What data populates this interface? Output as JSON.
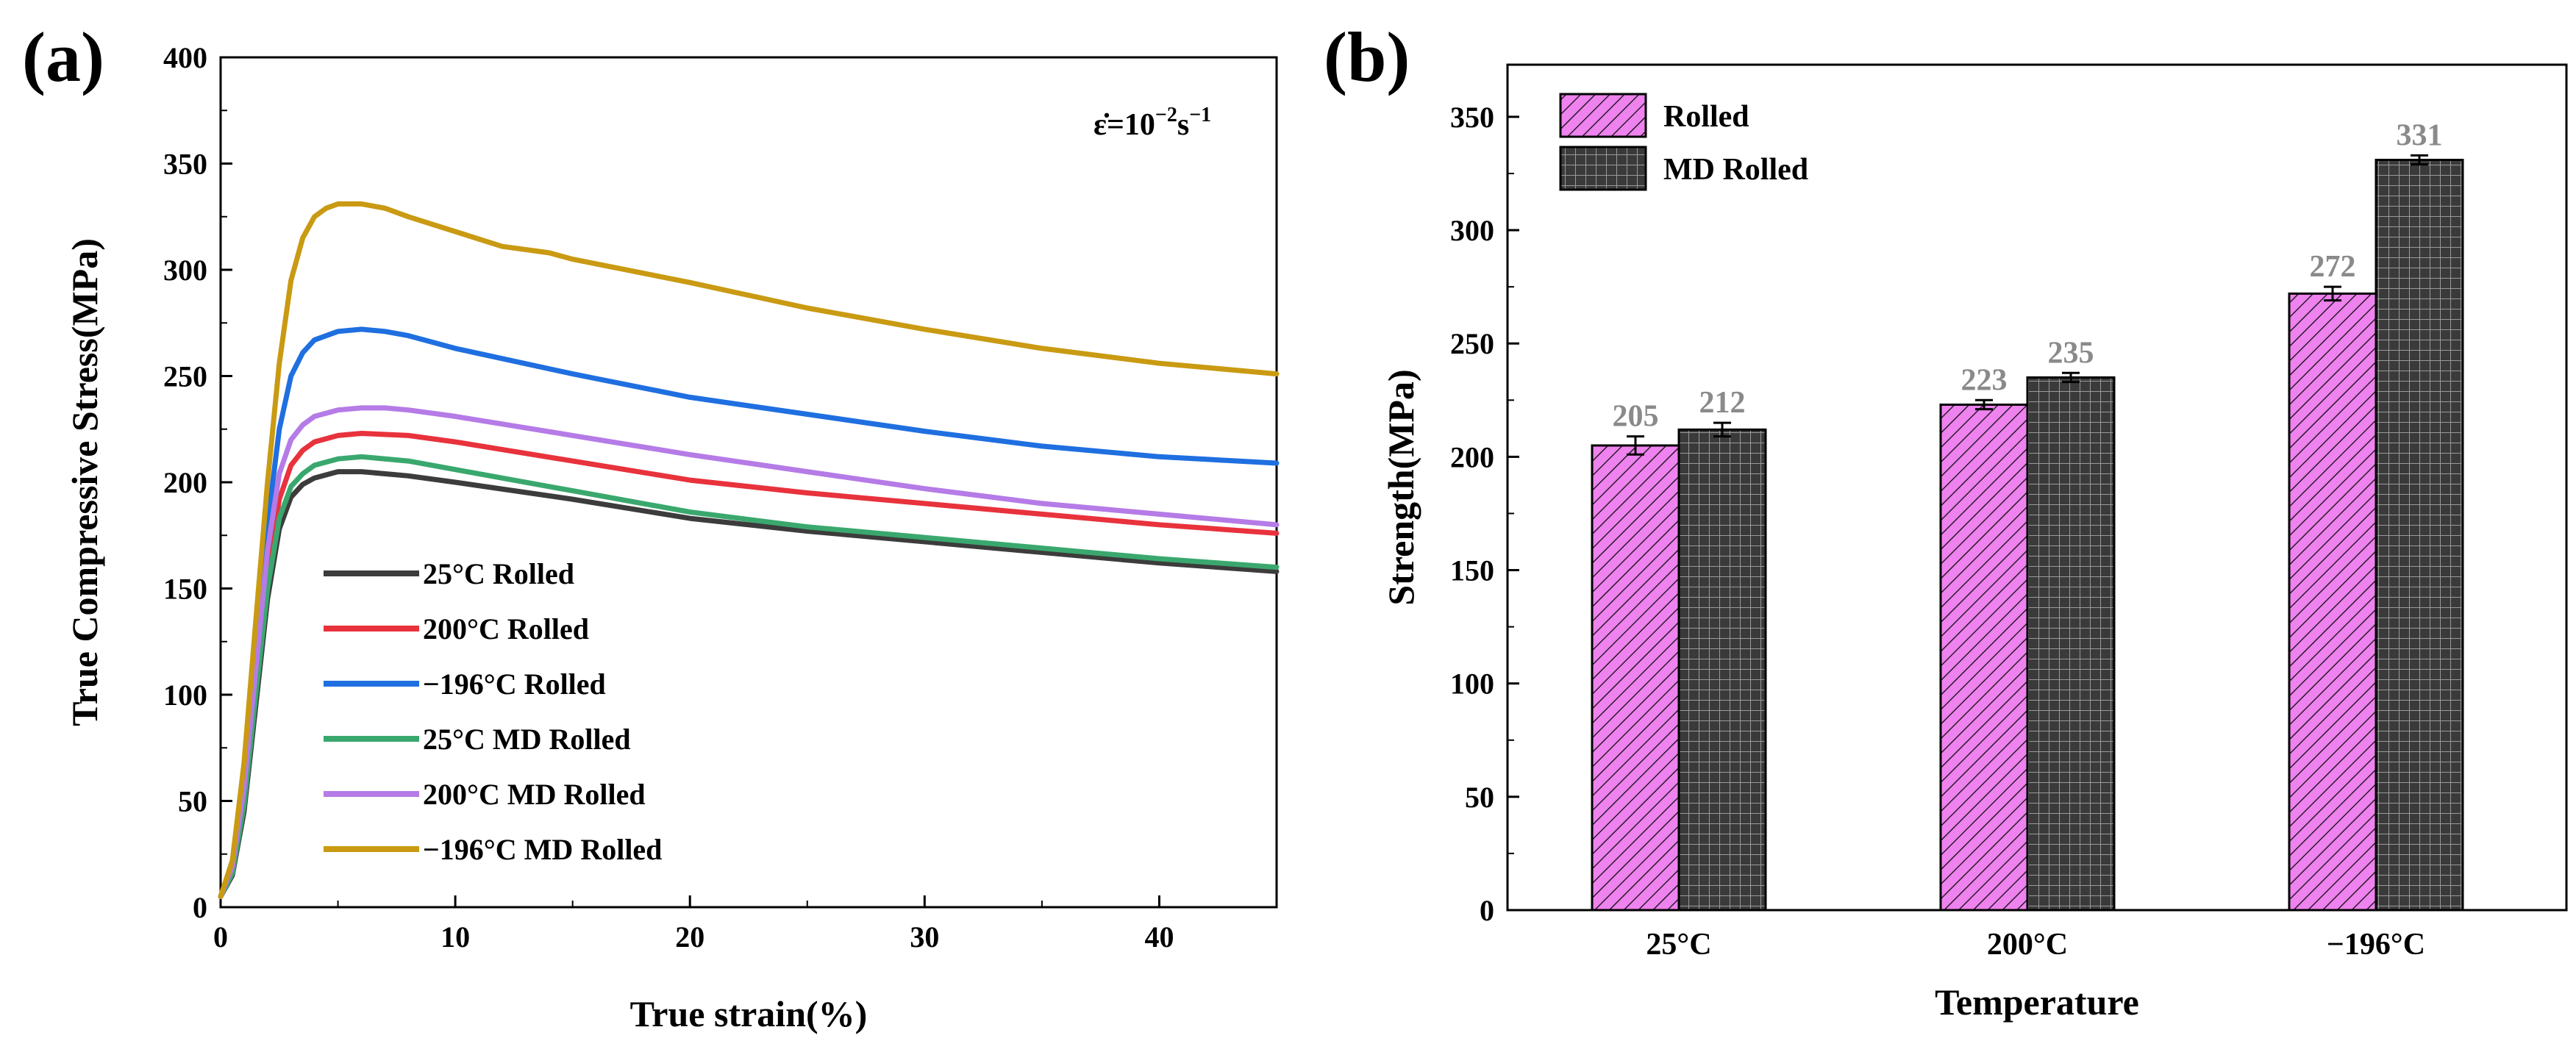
{
  "chart_data": [
    {
      "panel_label": "(a)",
      "type": "line",
      "xlabel": "True strain(%)",
      "ylabel": "True Compressive Stress(MPa)",
      "xlim": [
        0,
        45
      ],
      "ylim": [
        0,
        400
      ],
      "xticks": [
        0,
        10,
        20,
        30,
        40
      ],
      "yticks": [
        0,
        50,
        100,
        150,
        200,
        250,
        300,
        350,
        400
      ],
      "annotation": {
        "base": "ε̇=10",
        "exp1": "−2",
        "unit": "s",
        "exp2": "−1"
      },
      "legend_position": "bottom-left",
      "series": [
        {
          "name": "25°C Rolled",
          "color": "#3c3c3c",
          "x": [
            0,
            0.5,
            1,
            1.5,
            2,
            2.5,
            3,
            3.5,
            4,
            5,
            6,
            8,
            10,
            15,
            20,
            25,
            30,
            35,
            40,
            45
          ],
          "y": [
            5,
            15,
            45,
            95,
            145,
            178,
            193,
            199,
            202,
            205,
            205,
            203,
            200,
            192,
            183,
            177,
            172,
            167,
            162,
            158
          ]
        },
        {
          "name": "200°C Rolled",
          "color": "#e8323c",
          "x": [
            0,
            0.5,
            1,
            1.5,
            2,
            2.5,
            3,
            3.5,
            4,
            5,
            6,
            8,
            10,
            15,
            20,
            25,
            30,
            35,
            40,
            45
          ],
          "y": [
            5,
            18,
            52,
            105,
            158,
            192,
            208,
            215,
            219,
            222,
            223,
            222,
            219,
            210,
            201,
            195,
            190,
            185,
            180,
            176
          ]
        },
        {
          "name": "−196°C Rolled",
          "color": "#1f6fe0",
          "x": [
            0,
            0.5,
            1,
            1.5,
            2,
            2.5,
            3,
            3.5,
            4,
            5,
            6,
            7,
            8,
            10,
            15,
            20,
            25,
            30,
            35,
            40,
            45
          ],
          "y": [
            5,
            20,
            60,
            120,
            180,
            225,
            250,
            261,
            267,
            271,
            272,
            271,
            269,
            263,
            251,
            240,
            232,
            224,
            217,
            212,
            209
          ]
        },
        {
          "name": "25°C MD Rolled",
          "color": "#3aa86e",
          "x": [
            0,
            0.5,
            1,
            1.5,
            2,
            2.5,
            3,
            3.5,
            4,
            5,
            6,
            8,
            10,
            15,
            20,
            25,
            30,
            35,
            40,
            45
          ],
          "y": [
            5,
            16,
            48,
            100,
            150,
            183,
            198,
            204,
            208,
            211,
            212,
            210,
            206,
            196,
            186,
            179,
            174,
            169,
            164,
            160
          ]
        },
        {
          "name": "200°C MD Rolled",
          "color": "#b57be6",
          "x": [
            0,
            0.5,
            1,
            1.5,
            2,
            2.5,
            3,
            3.5,
            4,
            5,
            6,
            7,
            8,
            10,
            15,
            20,
            25,
            30,
            35,
            40,
            45
          ],
          "y": [
            5,
            19,
            56,
            112,
            168,
            204,
            220,
            227,
            231,
            234,
            235,
            235,
            234,
            231,
            222,
            213,
            205,
            197,
            190,
            185,
            180
          ]
        },
        {
          "name": "−196°C MD Rolled",
          "color": "#c99a12",
          "x": [
            0,
            0.5,
            1,
            1.5,
            2,
            2.5,
            3,
            3.5,
            4,
            4.5,
            5,
            5.5,
            6,
            7,
            8,
            10,
            12,
            14,
            15,
            20,
            25,
            30,
            35,
            40,
            45
          ],
          "y": [
            5,
            22,
            68,
            135,
            200,
            256,
            295,
            315,
            325,
            329,
            331,
            331,
            331,
            329,
            325,
            318,
            311,
            308,
            305,
            294,
            282,
            272,
            263,
            256,
            251
          ]
        }
      ]
    },
    {
      "panel_label": "(b)",
      "type": "bar",
      "xlabel": "Temperature",
      "ylabel": "Strength(MPa)",
      "ylim": [
        0,
        373
      ],
      "yticks": [
        0,
        50,
        100,
        150,
        200,
        250,
        300,
        350
      ],
      "categories": [
        "25°C",
        "200°C",
        "−196°C"
      ],
      "legend_position": "top-left",
      "series": [
        {
          "name": "Rolled",
          "color": "#e879e8",
          "pattern": "diagonal-hatch",
          "values": [
            205,
            223,
            272
          ],
          "errors": [
            4,
            2,
            3
          ],
          "labels": [
            "205",
            "223",
            "272"
          ]
        },
        {
          "name": "MD Rolled",
          "color": "#3a3a3a",
          "pattern": "grid",
          "values": [
            212,
            235,
            331
          ],
          "errors": [
            3,
            2,
            2
          ],
          "labels": [
            "212",
            "235",
            "331"
          ]
        }
      ]
    }
  ]
}
